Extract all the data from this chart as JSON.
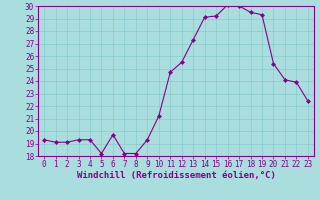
{
  "x": [
    0,
    1,
    2,
    3,
    4,
    5,
    6,
    7,
    8,
    9,
    10,
    11,
    12,
    13,
    14,
    15,
    16,
    17,
    18,
    19,
    20,
    21,
    22,
    23
  ],
  "y": [
    19.3,
    19.1,
    19.1,
    19.3,
    19.3,
    18.2,
    19.7,
    18.2,
    18.2,
    19.3,
    21.2,
    24.7,
    25.5,
    27.3,
    29.1,
    29.2,
    30.1,
    30.0,
    29.5,
    29.3,
    25.4,
    24.1,
    23.9,
    22.4
  ],
  "line_color": "#880088",
  "marker": "D",
  "marker_size": 2,
  "bg_color": "#aadddd",
  "grid_color": "#88cccc",
  "xlabel": "Windchill (Refroidissement éolien,°C)",
  "ylim": [
    18,
    30
  ],
  "xlim_min": -0.5,
  "xlim_max": 23.5,
  "yticks": [
    18,
    19,
    20,
    21,
    22,
    23,
    24,
    25,
    26,
    27,
    28,
    29,
    30
  ],
  "xticks": [
    0,
    1,
    2,
    3,
    4,
    5,
    6,
    7,
    8,
    9,
    10,
    11,
    12,
    13,
    14,
    15,
    16,
    17,
    18,
    19,
    20,
    21,
    22,
    23
  ],
  "tick_label_fontsize": 5.5,
  "xlabel_fontsize": 6.5,
  "spine_color": "#880088",
  "title_color": "#880088"
}
